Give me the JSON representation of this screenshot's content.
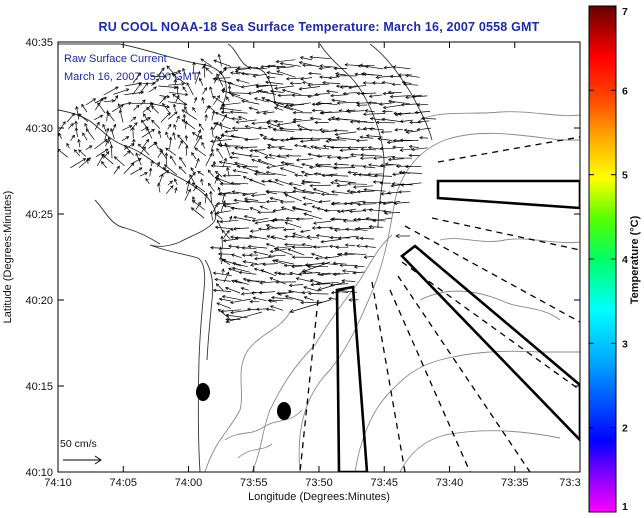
{
  "title": "RU COOL  NOAA-18  Sea Surface Temperature:  March 16, 2007 0558 GMT",
  "legend": {
    "line1": "Raw Surface Current",
    "line2": "March 16, 2007 05:00 GMT"
  },
  "scale_label": "50 cm/s",
  "x_axis": {
    "label": "Longitude (Degrees:Minutes)",
    "ticks": [
      "74:10",
      "74:05",
      "74:00",
      "73:55",
      "73:50",
      "73:45",
      "73:40",
      "73:35",
      "73:3"
    ]
  },
  "y_axis": {
    "label": "Latitude (Degrees:Minutes)",
    "ticks": [
      "40:35",
      "40:30",
      "40:25",
      "40:20",
      "40:15",
      "40:10"
    ]
  },
  "colorbar": {
    "label": "Temperature (°C)",
    "ticks": [
      "7",
      "6",
      "5",
      "4",
      "3",
      "2",
      "1"
    ],
    "colors": [
      "#ff00ff",
      "#7700ff",
      "#0000ff",
      "#00aaff",
      "#00ffff",
      "#00ff66",
      "#55ff00",
      "#ffff00",
      "#ffaa00",
      "#ff4400",
      "#ff0000",
      "#660000"
    ]
  },
  "map_colors": {
    "land_outline": "#333333",
    "bathymetry": "#888888",
    "arrows": "#000000"
  }
}
